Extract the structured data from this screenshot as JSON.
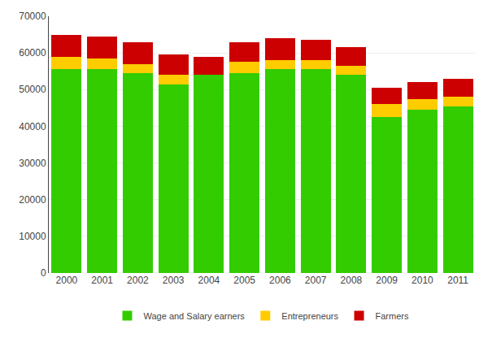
{
  "chart_data": {
    "type": "bar",
    "stacked": true,
    "categories": [
      "2000",
      "2001",
      "2002",
      "2003",
      "2004",
      "2005",
      "2006",
      "2007",
      "2008",
      "2009",
      "2010",
      "2011"
    ],
    "series": [
      {
        "name": "Wage and Salary earners",
        "color": "#33cc00",
        "values": [
          55500,
          55500,
          54500,
          51500,
          54000,
          54500,
          55500,
          55500,
          54000,
          42500,
          44500,
          45500
        ]
      },
      {
        "name": "Entrepreneurs",
        "color": "#ffcc00",
        "values": [
          3500,
          3000,
          2500,
          2500,
          0,
          3000,
          2500,
          2500,
          2500,
          3500,
          3000,
          2500
        ]
      },
      {
        "name": "Farmers",
        "color": "#cc0000",
        "values": [
          6000,
          6000,
          6000,
          5500,
          5000,
          5500,
          6000,
          5500,
          5000,
          4500,
          4500,
          5000
        ]
      }
    ],
    "ylim": [
      0,
      70000
    ],
    "yticks": [
      0,
      10000,
      20000,
      30000,
      40000,
      50000,
      60000,
      70000
    ],
    "grid": true,
    "legend": "bottom"
  }
}
